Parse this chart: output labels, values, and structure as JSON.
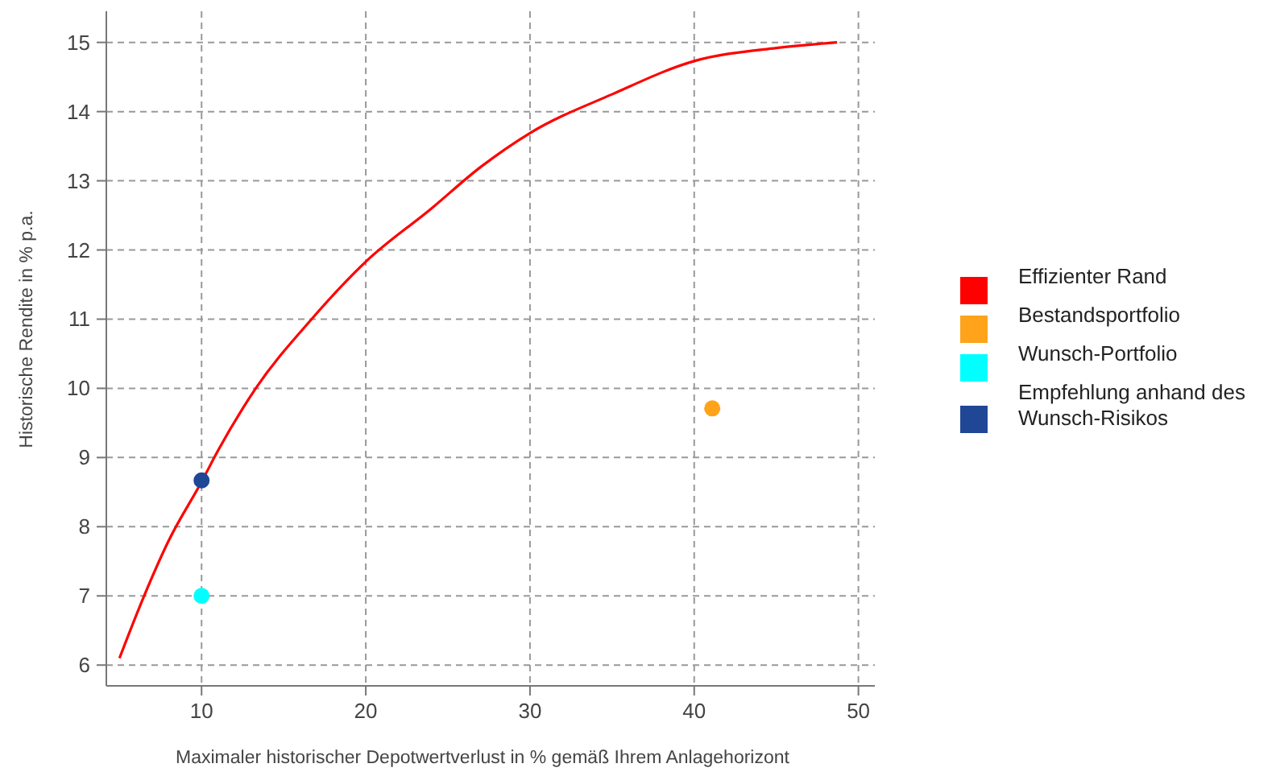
{
  "chart_data": {
    "type": "scatter",
    "xlabel": "Maximaler historischer Depotwertverlust in % gemäß Ihrem Anlagehorizont",
    "ylabel": "Historische Rendite in % p.a.",
    "xlim": [
      4.2,
      51
    ],
    "xticks": [
      10,
      20,
      30,
      40,
      50
    ],
    "ylim": [
      5.7,
      15.45
    ],
    "yticks": [
      6,
      7,
      8,
      9,
      10,
      11,
      12,
      13,
      14,
      15
    ],
    "grid": true,
    "legend": "right",
    "marker": "circle",
    "series": [
      {
        "name": "Effizienter Rand",
        "type": "line",
        "color": "#ff0000",
        "marker": "none",
        "x": [
          5,
          6.5,
          8,
          10,
          11,
          13.3,
          16.7,
          20,
          24,
          27,
          30,
          35,
          40,
          45,
          48.7
        ],
        "values": [
          6.1,
          7,
          7.8,
          8.65,
          9.1,
          10,
          11,
          11.83,
          12.6,
          13.2,
          13.69,
          14.25,
          14.73,
          14.92,
          15
        ]
      },
      {
        "name": "Bestandsportfolio",
        "color": "#ffa31a",
        "x": [
          41.1
        ],
        "values": [
          9.71
        ]
      },
      {
        "name": "Wunsch-Portfolio",
        "color": "#00ffff",
        "x": [
          10
        ],
        "values": [
          7
        ]
      },
      {
        "name": "Empfehlung anhand des Wunsch-Risikos",
        "color": "#1f4796",
        "x": [
          10
        ],
        "values": [
          8.67
        ]
      }
    ]
  }
}
